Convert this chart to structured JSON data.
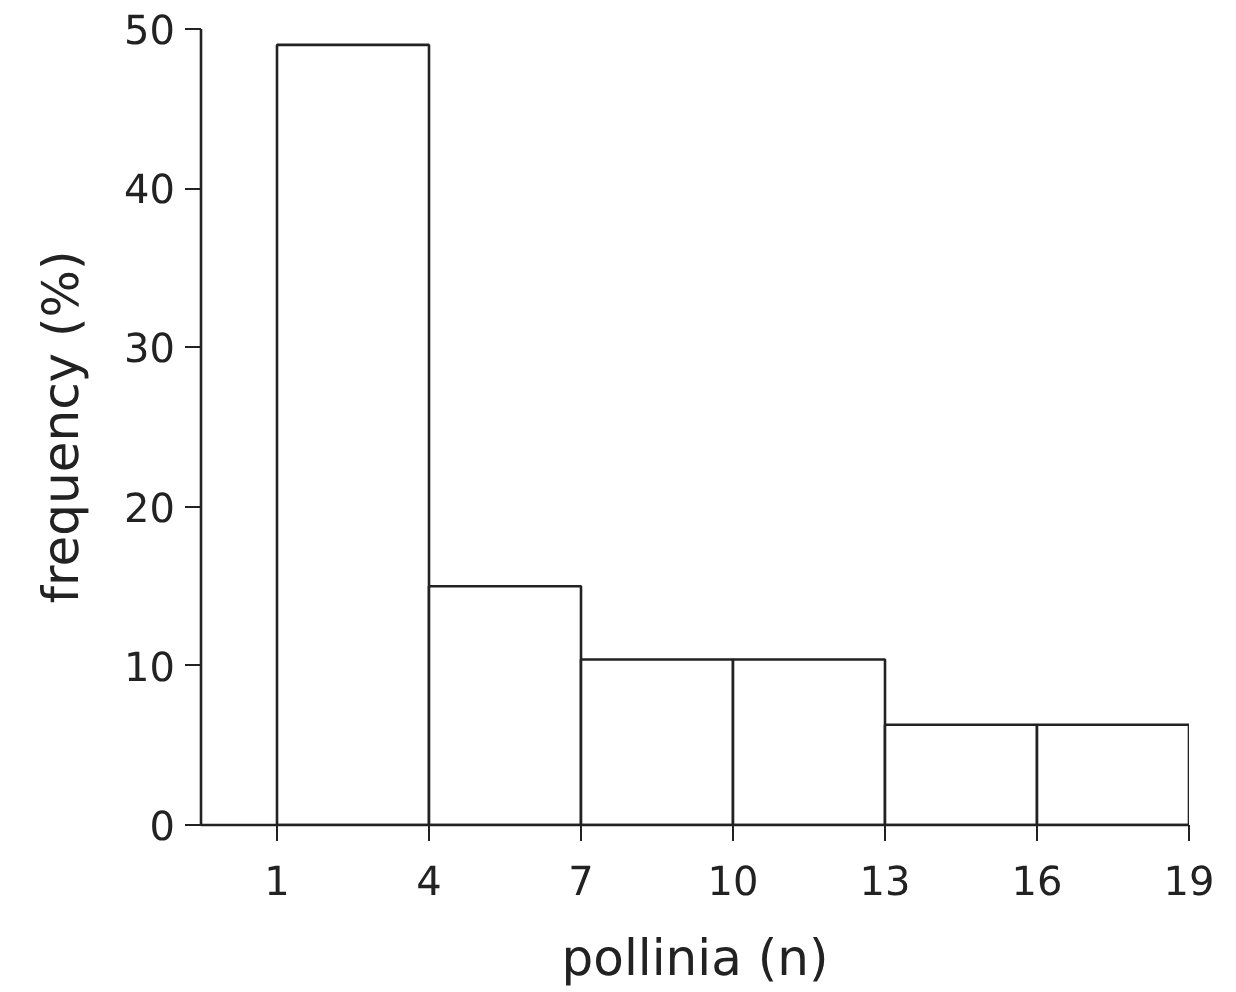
{
  "chart_data": {
    "type": "histogram",
    "xlabel": "pollinia (n)",
    "ylabel": "frequency (%)",
    "bins": [
      1,
      4,
      7,
      10,
      13,
      16,
      19
    ],
    "values": [
      49,
      15,
      10.4,
      10.4,
      6.3,
      6.3
    ],
    "color": "#ffffff",
    "xlim": [
      -0.5,
      19
    ],
    "ylim": [
      0,
      50
    ],
    "xticks": [
      1,
      4,
      7,
      10,
      13,
      16,
      19
    ],
    "yticks": [
      0,
      10,
      20,
      30,
      40,
      50
    ],
    "grid": false
  }
}
